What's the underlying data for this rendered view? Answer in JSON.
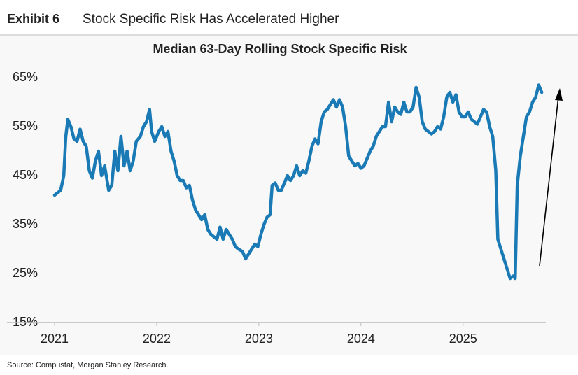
{
  "header": {
    "exhibit": "Exhibit 6",
    "title": "Stock Specific Risk Has Accelerated Higher"
  },
  "chart_data": {
    "type": "line",
    "title": "Median 63-Day Rolling Stock Specific Risk",
    "color": "#1a7ab5",
    "xlim": [
      2021,
      2025.81
    ],
    "xticks": [
      2021,
      2022,
      2023,
      2024,
      2025
    ],
    "ylim": [
      15,
      65
    ],
    "yticks": [
      {
        "value": 15,
        "label": "15%"
      },
      {
        "value": 25,
        "label": "25%"
      },
      {
        "value": 35,
        "label": "35%"
      },
      {
        "value": 45,
        "label": "45%"
      },
      {
        "value": 55,
        "label": "55%"
      },
      {
        "value": 65,
        "label": "65%"
      }
    ],
    "x": [
      2021.0,
      2021.03,
      2021.06,
      2021.09,
      2021.11,
      2021.13,
      2021.16,
      2021.19,
      2021.22,
      2021.25,
      2021.28,
      2021.31,
      2021.34,
      2021.37,
      2021.4,
      2021.43,
      2021.46,
      2021.49,
      2021.53,
      2021.56,
      2021.59,
      2021.62,
      2021.65,
      2021.68,
      2021.71,
      2021.74,
      2021.77,
      2021.8,
      2021.84,
      2021.87,
      2021.9,
      2021.93,
      2021.95,
      2021.98,
      2022.02,
      2022.05,
      2022.08,
      2022.11,
      2022.14,
      2022.17,
      2022.2,
      2022.23,
      2022.26,
      2022.29,
      2022.32,
      2022.35,
      2022.38,
      2022.41,
      2022.44,
      2022.47,
      2022.5,
      2022.53,
      2022.56,
      2022.59,
      2022.62,
      2022.65,
      2022.68,
      2022.71,
      2022.74,
      2022.77,
      2022.8,
      2022.84,
      2022.87,
      2022.9,
      2022.93,
      2022.96,
      2022.99,
      2023.02,
      2023.05,
      2023.08,
      2023.11,
      2023.13,
      2023.16,
      2023.19,
      2023.22,
      2023.25,
      2023.28,
      2023.31,
      2023.34,
      2023.37,
      2023.4,
      2023.43,
      2023.46,
      2023.49,
      2023.52,
      2023.55,
      2023.58,
      2023.61,
      2023.64,
      2023.67,
      2023.7,
      2023.73,
      2023.76,
      2023.79,
      2023.82,
      2023.85,
      2023.88,
      2023.91,
      2023.94,
      2023.97,
      2024.0,
      2024.03,
      2024.06,
      2024.09,
      2024.12,
      2024.15,
      2024.18,
      2024.21,
      2024.24,
      2024.27,
      2024.3,
      2024.33,
      2024.36,
      2024.39,
      2024.42,
      2024.45,
      2024.48,
      2024.51,
      2024.54,
      2024.57,
      2024.6,
      2024.63,
      2024.66,
      2024.69,
      2024.72,
      2024.75,
      2024.78,
      2024.81,
      2024.84,
      2024.87,
      2024.9,
      2024.93,
      2024.96,
      2024.99,
      2025.02,
      2025.05,
      2025.08,
      2025.11,
      2025.14,
      2025.17,
      2025.2,
      2025.23,
      2025.26,
      2025.29,
      2025.32,
      2025.34,
      2025.37,
      2025.4,
      2025.43,
      2025.46,
      2025.49,
      2025.51,
      2025.53,
      2025.56,
      2025.59,
      2025.62,
      2025.65,
      2025.68,
      2025.71,
      2025.74,
      2025.77
    ],
    "values": [
      41,
      41.5,
      42,
      45,
      53,
      56.5,
      55,
      52.5,
      52,
      54.5,
      52,
      51,
      46,
      44.5,
      48,
      50,
      45,
      47,
      42,
      43,
      50,
      46,
      53,
      47,
      50,
      46,
      48,
      52,
      53,
      55,
      56,
      58.5,
      54,
      52,
      54,
      55,
      53,
      54,
      50,
      48,
      45,
      44,
      44,
      42.5,
      43,
      40,
      38,
      37,
      36,
      37,
      34,
      33,
      32.5,
      32,
      34.5,
      32,
      34,
      33,
      32,
      30.5,
      30,
      29.5,
      28,
      29,
      30,
      31,
      30.5,
      33,
      35,
      36.5,
      37,
      43,
      43.5,
      42,
      42,
      43.5,
      45,
      44,
      45,
      47,
      45,
      46,
      45.5,
      48,
      51,
      52.5,
      51.5,
      56,
      58,
      58.5,
      59.5,
      60.5,
      59,
      60.5,
      59,
      55,
      49,
      48,
      47,
      47.5,
      46.5,
      47,
      48.5,
      50,
      51,
      53,
      54,
      55,
      55,
      60,
      56,
      59,
      58,
      57.5,
      60,
      58,
      58,
      59,
      63,
      61,
      56,
      54.5,
      54,
      53.5,
      54,
      55,
      54.5,
      57,
      61,
      62,
      60,
      61.5,
      58,
      57,
      57,
      58,
      56.5,
      56,
      55.5,
      57,
      58.5,
      58,
      55,
      53,
      46,
      32,
      30,
      28,
      26,
      24,
      24.5,
      24,
      43,
      49,
      53,
      57,
      58,
      60,
      61,
      63.5,
      62
    ]
  },
  "source": "Source: Compustat, Morgan Stanley Research."
}
